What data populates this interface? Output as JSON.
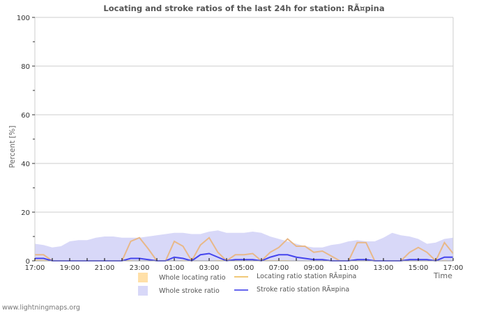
{
  "title": "Locating and stroke ratios of the last 24h for station: RÃ¤pina",
  "footer": "www.lightningmaps.org",
  "axes": {
    "ylabel": "Percent   [%]",
    "xlabel": "Time",
    "yticks": [
      "0",
      "20",
      "40",
      "60",
      "80",
      "100"
    ],
    "xticks": [
      "17:00",
      "19:00",
      "21:00",
      "23:00",
      "01:00",
      "03:00",
      "05:00",
      "07:00",
      "09:00",
      "11:00",
      "13:00",
      "15:00",
      "17:00"
    ]
  },
  "legend": {
    "whole_locating": "Whole locating ratio",
    "locating_station": "Locating ratio station RÃ¤pina",
    "whole_stroke": "Whole stroke ratio",
    "stroke_station": "Stroke ratio station RÃ¤pina"
  },
  "colors": {
    "whole_locating": "#ffe0a8",
    "locating_station": "#e8b888",
    "whole_stroke": "#d8d8f8",
    "stroke_station": "#4444ee",
    "grid": "#cccccc"
  },
  "chart_data": {
    "type": "area",
    "title": "Locating and stroke ratios of the last 24h for station: RÃ¤pina",
    "xlabel": "Time",
    "ylabel": "Percent [%]",
    "ylim": [
      0,
      100
    ],
    "grid": true,
    "legend_position": "bottom",
    "x": [
      "17:00",
      "17:30",
      "18:00",
      "18:30",
      "19:00",
      "19:30",
      "20:00",
      "20:30",
      "21:00",
      "21:30",
      "22:00",
      "22:30",
      "23:00",
      "23:30",
      "00:00",
      "00:30",
      "01:00",
      "01:30",
      "02:00",
      "02:30",
      "03:00",
      "03:30",
      "04:00",
      "04:30",
      "05:00",
      "05:30",
      "06:00",
      "06:30",
      "07:00",
      "07:30",
      "08:00",
      "08:30",
      "09:00",
      "09:30",
      "10:00",
      "10:30",
      "11:00",
      "11:30",
      "12:00",
      "12:30",
      "13:00",
      "13:30",
      "14:00",
      "14:30",
      "15:00",
      "15:30",
      "16:00",
      "16:30",
      "17:00"
    ],
    "series": [
      {
        "name": "Whole stroke ratio",
        "style": "area",
        "values": [
          7,
          6.5,
          5.5,
          6,
          8,
          8.5,
          8.5,
          9.5,
          10,
          10,
          9.5,
          9.5,
          9.5,
          10,
          10.5,
          11,
          11.5,
          11.5,
          11,
          11,
          12,
          12.5,
          11.5,
          11.5,
          11.5,
          12,
          11.5,
          10,
          9,
          8,
          7,
          6,
          5.5,
          5.5,
          6.5,
          7,
          8,
          8.5,
          8,
          8,
          9.5,
          11.5,
          10.5,
          10,
          9,
          7,
          7.5,
          9,
          9.5
        ]
      },
      {
        "name": "Whole locating ratio",
        "style": "area",
        "values": [
          0.5,
          0.5,
          0,
          0,
          0,
          0,
          0,
          0,
          0,
          0,
          0.3,
          0.3,
          0,
          0,
          0.3,
          0,
          0,
          0.3,
          0,
          0,
          0,
          0.3,
          0.3,
          0.3,
          0,
          0,
          0.3,
          0.3,
          0.3,
          0.3,
          0,
          0,
          0,
          0,
          0,
          0,
          0,
          0,
          0,
          0.3,
          0.3,
          0.3,
          0.3,
          0,
          0,
          0,
          0,
          0.3,
          0
        ]
      },
      {
        "name": "Locating ratio station RÃ¤pina",
        "style": "line",
        "values": [
          2.5,
          2.5,
          0,
          0,
          0,
          0,
          0,
          0,
          0,
          0,
          0,
          8,
          9.5,
          5,
          0,
          0,
          8,
          6,
          0,
          6.5,
          9.5,
          3.5,
          0,
          2.5,
          2.5,
          3,
          0,
          3.5,
          5.5,
          9,
          6,
          6,
          3.5,
          4,
          2,
          0,
          0,
          7.5,
          7.5,
          0,
          0,
          0,
          0,
          3.5,
          5.5,
          3.5,
          0,
          7.5,
          3
        ]
      },
      {
        "name": "Stroke ratio station RÃ¤pina",
        "style": "line",
        "values": [
          1,
          1,
          0,
          0,
          0,
          0,
          0,
          0,
          0,
          0,
          0,
          1,
          1,
          0.5,
          0,
          0,
          1.5,
          1,
          0,
          2.5,
          3,
          1.5,
          0,
          0.5,
          0.5,
          0.5,
          0,
          1.5,
          2.5,
          2.5,
          1.5,
          1,
          0.5,
          0.5,
          0,
          0,
          0,
          0.5,
          0.5,
          0,
          0,
          0,
          0,
          0.5,
          0.5,
          0.5,
          0,
          1.5,
          1.5
        ]
      }
    ]
  }
}
